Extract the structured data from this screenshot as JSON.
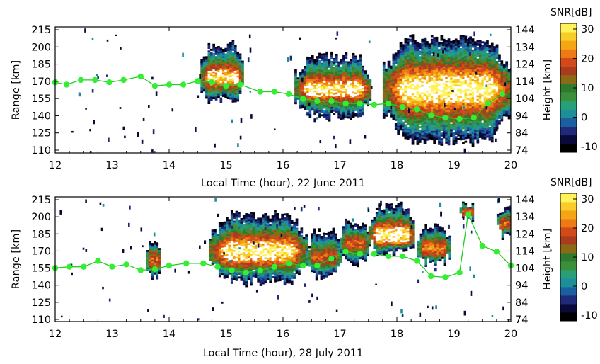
{
  "colors": {
    "track": "#33ee33",
    "track_line": "#22cc22",
    "frame": "#000000",
    "colormap": [
      "#000000",
      "#0a0a3a",
      "#1f2a78",
      "#1c5fa0",
      "#1d8f9a",
      "#27a079",
      "#3c8f3a",
      "#2e7a2e",
      "#8a6a14",
      "#a83c1c",
      "#d24a1a",
      "#ee7a16",
      "#f5a614",
      "#f8cd2a",
      "#fff25a"
    ]
  },
  "chart_data": [
    {
      "type": "heatmap",
      "xlabel": "Local Time (hour), 22 June 2011",
      "ylabel": "Range [km]",
      "ylabel_right": "Height [km]",
      "xlim": [
        12,
        20
      ],
      "ylim": [
        108,
        215
      ],
      "x_ticks": [
        "12",
        "13",
        "14",
        "15",
        "16",
        "17",
        "18",
        "19",
        "20"
      ],
      "y_ticks": [
        "215",
        "200",
        "185",
        "170",
        "155",
        "140",
        "125",
        "110"
      ],
      "y_ticks_right": [
        "144",
        "134",
        "124",
        "114",
        "104",
        "94",
        "84",
        "74"
      ],
      "colorbar": {
        "label": "SNR[dB]",
        "min": -10,
        "max": 30,
        "ticks": [
          "30",
          "20",
          "10",
          "0",
          "-10"
        ]
      },
      "echo_regions": [
        {
          "t_start": 14.55,
          "t_end": 15.3,
          "range_low": 153,
          "range_high": 200,
          "core_low": 166,
          "core_high": 180,
          "peak_snr": 26
        },
        {
          "t_start": 16.2,
          "t_end": 17.55,
          "range_low": 140,
          "range_high": 190,
          "core_low": 156,
          "core_high": 170,
          "peak_snr": 27
        },
        {
          "t_start": 17.75,
          "t_end": 20.0,
          "range_low": 118,
          "range_high": 205,
          "core_low": 150,
          "core_high": 176,
          "peak_snr": 30
        }
      ],
      "track": {
        "x": [
          12.0,
          12.2,
          12.45,
          12.7,
          12.95,
          13.2,
          13.5,
          13.75,
          14.0,
          14.25,
          14.5,
          14.75,
          15.0,
          15.25,
          15.6,
          15.85,
          16.1,
          16.35,
          16.6,
          16.85,
          17.1,
          17.35,
          17.6,
          17.85,
          18.1,
          18.35,
          18.6,
          18.85,
          19.1,
          19.35,
          19.6,
          19.85
        ],
        "y": [
          168,
          166,
          170,
          170,
          168,
          170,
          173,
          165,
          166,
          166,
          169,
          168,
          165,
          166,
          160,
          160,
          158,
          154,
          152,
          152,
          150,
          150,
          149,
          150,
          147,
          145,
          140,
          138,
          137,
          138,
          150,
          158
        ]
      }
    },
    {
      "type": "heatmap",
      "xlabel": "Local Time (hour), 28 July 2011",
      "ylabel": "Range [km]",
      "ylabel_right": "Height [km]",
      "xlim": [
        12,
        20
      ],
      "ylim": [
        108,
        215
      ],
      "x_ticks": [
        "12",
        "13",
        "14",
        "15",
        "16",
        "17",
        "18",
        "19",
        "20"
      ],
      "y_ticks": [
        "215",
        "200",
        "185",
        "170",
        "155",
        "140",
        "125",
        "110"
      ],
      "y_ticks_right": [
        "144",
        "134",
        "124",
        "114",
        "104",
        "94",
        "84",
        "74"
      ],
      "colorbar": {
        "label": "SNR[dB]",
        "min": -10,
        "max": 30,
        "ticks": [
          "30",
          "20",
          "10",
          "0",
          "-10"
        ]
      },
      "echo_regions": [
        {
          "t_start": 13.6,
          "t_end": 13.85,
          "range_low": 148,
          "range_high": 175,
          "core_low": 155,
          "core_high": 168,
          "peak_snr": 18
        },
        {
          "t_start": 14.7,
          "t_end": 16.4,
          "range_low": 143,
          "range_high": 200,
          "core_low": 160,
          "core_high": 178,
          "peak_snr": 28
        },
        {
          "t_start": 16.4,
          "t_end": 17.0,
          "range_low": 148,
          "range_high": 185,
          "core_low": 158,
          "core_high": 170,
          "peak_snr": 18
        },
        {
          "t_start": 17.0,
          "t_end": 17.5,
          "range_low": 160,
          "range_high": 193,
          "core_low": 170,
          "core_high": 182,
          "peak_snr": 18
        },
        {
          "t_start": 17.5,
          "t_end": 18.3,
          "range_low": 168,
          "range_high": 207,
          "core_low": 176,
          "core_high": 190,
          "peak_snr": 28
        },
        {
          "t_start": 18.35,
          "t_end": 18.9,
          "range_low": 160,
          "range_high": 190,
          "core_low": 165,
          "core_high": 178,
          "peak_snr": 20
        },
        {
          "t_start": 19.1,
          "t_end": 19.35,
          "range_low": 197,
          "range_high": 210,
          "core_low": 199,
          "core_high": 206,
          "peak_snr": 18
        },
        {
          "t_start": 19.75,
          "t_end": 20.0,
          "range_low": 183,
          "range_high": 205,
          "core_low": 188,
          "core_high": 198,
          "peak_snr": 18
        }
      ],
      "track": {
        "x": [
          12.0,
          12.25,
          12.5,
          12.75,
          13.0,
          13.25,
          13.5,
          13.75,
          14.0,
          14.3,
          14.6,
          14.85,
          15.1,
          15.35,
          15.6,
          15.85,
          16.1,
          16.35,
          16.6,
          16.85,
          17.1,
          17.35,
          17.6,
          17.85,
          18.1,
          18.35,
          18.6,
          18.85,
          19.1,
          19.25,
          19.5,
          19.75,
          20.0
        ],
        "y": [
          154,
          155,
          155,
          160,
          155,
          157,
          152,
          153,
          156,
          158,
          158,
          155,
          152,
          150,
          152,
          155,
          158,
          156,
          156,
          162,
          168,
          166,
          166,
          164,
          164,
          160,
          147,
          146,
          150,
          200,
          173,
          168,
          156
        ]
      }
    }
  ]
}
